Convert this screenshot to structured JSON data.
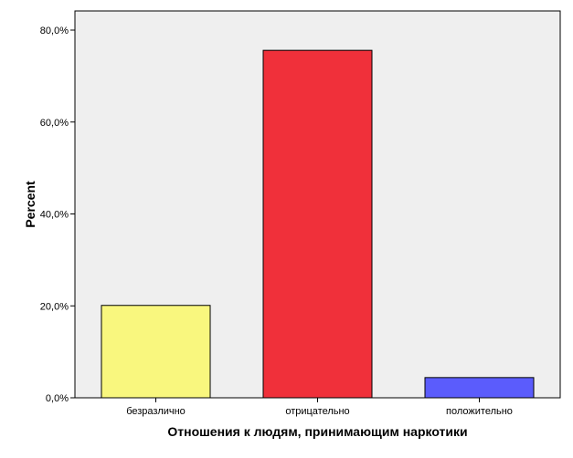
{
  "chart_data": {
    "type": "bar",
    "xlabel": "Отношения к людям, принимающим наркотики",
    "ylabel": "Percent",
    "categories": [
      "безразлично",
      "отрицательно",
      "положительно"
    ],
    "values": [
      20.1,
      75.6,
      4.4
    ],
    "colors": [
      "#f9f77e",
      "#f0303a",
      "#5b5cfc"
    ],
    "ylim": [
      0,
      80
    ],
    "yticks": [
      0,
      20,
      40,
      60,
      80
    ],
    "ytick_labels": [
      "0,0%",
      "20,0%",
      "40,0%",
      "60,0%",
      "80,0%"
    ],
    "plot_background": "#efefef",
    "grid": false,
    "legend": "none"
  }
}
